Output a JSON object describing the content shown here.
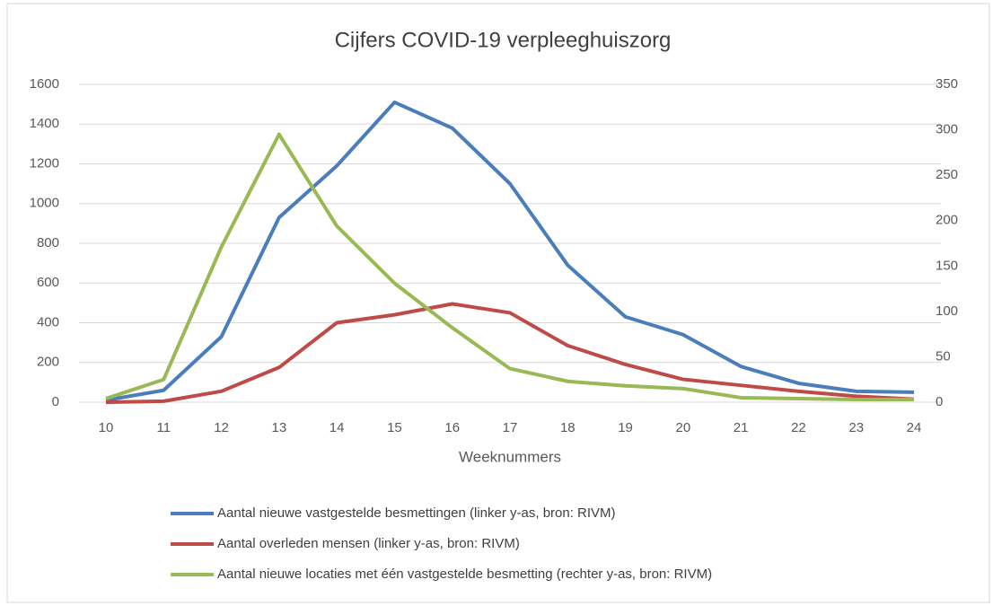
{
  "chart_data": {
    "type": "line",
    "title": "Cijfers COVID-19 verpleeghuiszorg",
    "x_label": "Weeknummers",
    "x": [
      10,
      11,
      12,
      13,
      14,
      15,
      16,
      17,
      18,
      19,
      20,
      21,
      22,
      23,
      24
    ],
    "xlim": [
      10,
      24
    ],
    "xticks": [
      10,
      11,
      12,
      13,
      14,
      15,
      16,
      17,
      18,
      19,
      20,
      21,
      22,
      23,
      24
    ],
    "ylim": [
      0,
      1600
    ],
    "yticks": [
      0,
      200,
      400,
      600,
      800,
      1000,
      1200,
      1400,
      1600
    ],
    "y2lim": [
      0,
      350
    ],
    "y2ticks": [
      0,
      50,
      100,
      150,
      200,
      250,
      300,
      350
    ],
    "grid": true,
    "legend": "bottom",
    "series": [
      {
        "name": "Aantal nieuwe vastgestelde besmettingen  (linker y-as, bron: RIVM)",
        "color": "#4a7ebb",
        "values": [
          10,
          60,
          330,
          930,
          1190,
          1510,
          1380,
          1100,
          690,
          430,
          340,
          180,
          95,
          55,
          50
        ]
      },
      {
        "name": "Aantal overleden mensen  (linker y-as, bron: RIVM)",
        "color": "#be4b48",
        "values": [
          0,
          5,
          55,
          175,
          400,
          440,
          495,
          450,
          285,
          190,
          115,
          85,
          55,
          30,
          15
        ]
      },
      {
        "name": "Aantal nieuwe locaties met één vastgestelde besmetting  (rechter y-as, bron: RIVM)",
        "color": "#98b954",
        "axis": "y2",
        "values": [
          4,
          25,
          171,
          295,
          194,
          131,
          82,
          37,
          23,
          18,
          15,
          5,
          4,
          3,
          3
        ]
      }
    ]
  }
}
